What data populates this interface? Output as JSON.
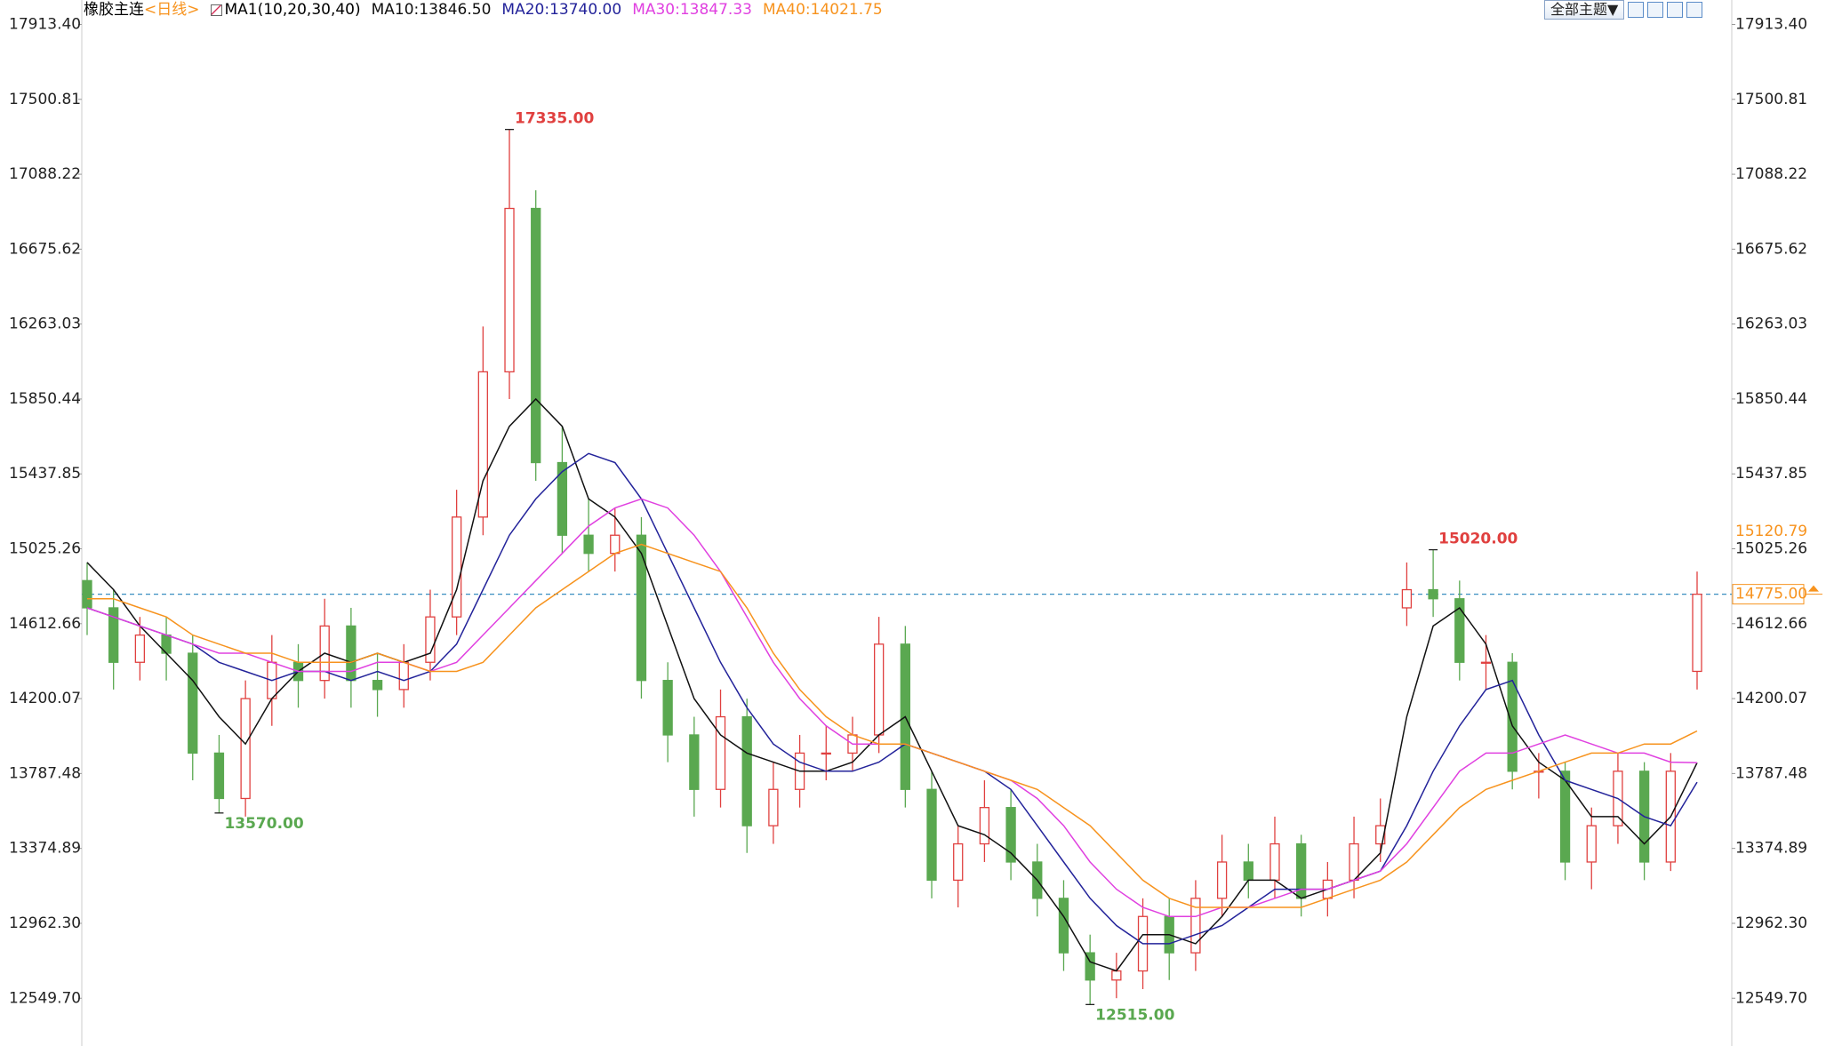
{
  "chart_data": {
    "type": "candlestick",
    "title": "橡胶主连",
    "period": "<日线>",
    "indicator": "MA1(10,20,30,40)",
    "toolbar": {
      "theme_button": "全部主题▼"
    },
    "up_color": "#e0403f",
    "down_color": "#5aa850",
    "ylim": [
      12286.6,
      18048
    ],
    "yticks": [
      {
        "value": 17913.4,
        "label": "17913.40"
      },
      17500.81,
      17088.22,
      16675.62,
      16263.03,
      15850.44,
      15437.85,
      15025.26,
      14612.66,
      14200.07,
      13787.48,
      13374.89,
      {
        "value": 12962.3,
        "label": "12962.30"
      },
      {
        "value": 12549.7,
        "label": "12549.70"
      }
    ],
    "candles": {
      "open": [
        14850,
        14700,
        14400,
        14550,
        14450,
        13900,
        13650,
        14200,
        14400,
        14300,
        14600,
        14300,
        14250,
        14400,
        14650,
        15200,
        16000,
        16900,
        15500,
        15100,
        15000,
        15100,
        14300,
        14000,
        13700,
        14100,
        13500,
        13700,
        13900,
        13900,
        14000,
        14500,
        13700,
        13200,
        13400,
        13600,
        13300,
        13100,
        12800,
        12650,
        12700,
        13000,
        12800,
        13100,
        13300,
        13200,
        13400,
        13100,
        13200,
        13400,
        14700,
        14800,
        14750,
        14400,
        14400,
        13800,
        13800,
        13300,
        13500,
        13800,
        13300,
        14350
      ],
      "high": [
        14950,
        14800,
        14650,
        14650,
        14550,
        14000,
        14300,
        14550,
        14500,
        14750,
        14700,
        14450,
        14500,
        14800,
        15350,
        16250,
        17335,
        17000,
        15700,
        15300,
        15250,
        15200,
        14400,
        14100,
        14250,
        14200,
        13850,
        14000,
        14050,
        14100,
        14650,
        14600,
        13800,
        13500,
        13750,
        13700,
        13400,
        13200,
        12900,
        12800,
        13100,
        13100,
        13200,
        13450,
        13400,
        13550,
        13450,
        13300,
        13550,
        13650,
        14950,
        15020,
        14850,
        14550,
        14450,
        13900,
        13850,
        13600,
        13900,
        13850,
        13900,
        14900
      ],
      "low": [
        14550,
        14250,
        14300,
        14300,
        13750,
        13570,
        13550,
        14050,
        14150,
        14200,
        14150,
        14100,
        14150,
        14300,
        14550,
        15100,
        15850,
        15400,
        15000,
        14900,
        14900,
        14200,
        13850,
        13550,
        13600,
        13350,
        13400,
        13600,
        13750,
        13800,
        13900,
        13600,
        13100,
        13050,
        13300,
        13200,
        13000,
        12700,
        12515,
        12550,
        12600,
        12650,
        12700,
        13000,
        13100,
        13100,
        13000,
        13000,
        13100,
        13300,
        14600,
        14650,
        14300,
        14250,
        13700,
        13650,
        13200,
        13150,
        13400,
        13200,
        13250,
        14250
      ],
      "close": [
        14700,
        14400,
        14550,
        14450,
        13900,
        13650,
        14200,
        14400,
        14300,
        14600,
        14300,
        14250,
        14400,
        14650,
        15200,
        16000,
        16900,
        15500,
        15100,
        15000,
        15100,
        14300,
        14000,
        13700,
        14100,
        13500,
        13700,
        13900,
        13900,
        14000,
        14500,
        13700,
        13200,
        13400,
        13600,
        13300,
        13100,
        12800,
        12650,
        12700,
        13000,
        12800,
        13100,
        13300,
        13200,
        13400,
        13100,
        13200,
        13400,
        13500,
        14800,
        14750,
        14400,
        14400,
        13800,
        13800,
        13300,
        13500,
        13800,
        13300,
        13800,
        14775
      ]
    },
    "series": [
      {
        "name": "MA10:13846.50",
        "color": "#111111",
        "values": [
          14950,
          14800,
          14600,
          14450,
          14300,
          14100,
          13950,
          14200,
          14350,
          14450,
          14400,
          14450,
          14400,
          14450,
          14800,
          15400,
          15700,
          15850,
          15700,
          15300,
          15200,
          15000,
          14600,
          14200,
          14000,
          13900,
          13850,
          13800,
          13800,
          13850,
          14000,
          14100,
          13800,
          13500,
          13450,
          13350,
          13200,
          13000,
          12750,
          12700,
          12900,
          12900,
          12850,
          13000,
          13200,
          13200,
          13100,
          13150,
          13200,
          13350,
          14100,
          14600,
          14700,
          14500,
          14050,
          13850,
          13750,
          13550,
          13550,
          13400,
          13550,
          13846.5
        ]
      },
      {
        "name": "MA20:13740.00",
        "color": "#23239a",
        "values": [
          14700,
          14650,
          14600,
          14550,
          14500,
          14400,
          14350,
          14300,
          14350,
          14350,
          14300,
          14350,
          14300,
          14350,
          14500,
          14800,
          15100,
          15300,
          15450,
          15550,
          15500,
          15300,
          15000,
          14700,
          14400,
          14150,
          13950,
          13850,
          13800,
          13800,
          13850,
          13950,
          13900,
          13850,
          13800,
          13700,
          13500,
          13300,
          13100,
          12950,
          12850,
          12850,
          12900,
          12950,
          13050,
          13150,
          13150,
          13150,
          13200,
          13250,
          13500,
          13800,
          14050,
          14250,
          14300,
          14000,
          13750,
          13700,
          13650,
          13550,
          13500,
          13740
        ]
      },
      {
        "name": "MA30:13847.33",
        "color": "#e040e0",
        "values": [
          14700,
          14650,
          14600,
          14550,
          14500,
          14450,
          14450,
          14400,
          14350,
          14350,
          14350,
          14400,
          14400,
          14350,
          14400,
          14550,
          14700,
          14850,
          15000,
          15150,
          15250,
          15300,
          15250,
          15100,
          14900,
          14650,
          14400,
          14200,
          14050,
          13950,
          13950,
          13950,
          13900,
          13850,
          13800,
          13750,
          13650,
          13500,
          13300,
          13150,
          13050,
          13000,
          13000,
          13050,
          13050,
          13100,
          13150,
          13150,
          13200,
          13250,
          13400,
          13600,
          13800,
          13900,
          13900,
          13950,
          14000,
          13950,
          13900,
          13900,
          13850,
          13847.33
        ]
      },
      {
        "name": "MA40:14021.75",
        "color": "#f7931e",
        "values": [
          14750,
          14750,
          14700,
          14650,
          14550,
          14500,
          14450,
          14450,
          14400,
          14400,
          14400,
          14450,
          14400,
          14350,
          14350,
          14400,
          14550,
          14700,
          14800,
          14900,
          15000,
          15050,
          15000,
          14950,
          14900,
          14700,
          14450,
          14250,
          14100,
          14000,
          13950,
          13950,
          13900,
          13850,
          13800,
          13750,
          13700,
          13600,
          13500,
          13350,
          13200,
          13100,
          13050,
          13050,
          13050,
          13050,
          13050,
          13100,
          13150,
          13200,
          13300,
          13450,
          13600,
          13700,
          13750,
          13800,
          13850,
          13900,
          13900,
          13950,
          13950,
          14021.75
        ]
      }
    ],
    "annotations": [
      {
        "value": 17335,
        "label": "17335.00"
      },
      {
        "value": 13570,
        "label": "13570.00"
      },
      {
        "value": 12515,
        "label": "12515.00"
      },
      {
        "value": 15020,
        "label": "15020.00"
      }
    ],
    "right_marker": {
      "value": 15120.79,
      "label": "15120.79",
      "color": "#f7931e"
    },
    "last_price": {
      "value": 14775,
      "label": "14775.00",
      "color": "#f7931e",
      "line_color": "#3a8fc0"
    }
  }
}
